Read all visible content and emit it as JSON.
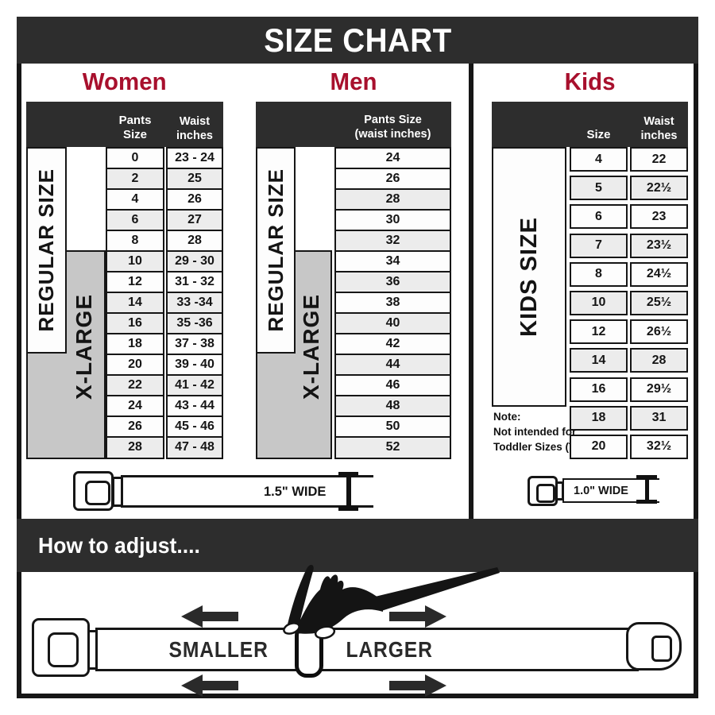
{
  "header": {
    "title": "SIZE CHART"
  },
  "colors": {
    "accent_red": "#a8102d",
    "dark_bar": "#2d2d2d",
    "shaded_row": "#ececec",
    "label_gray": "#c7c7c7",
    "border": "#161616"
  },
  "sections": {
    "women": {
      "title": "Women",
      "col1": "Pants Size",
      "col2": "Waist\ninches",
      "regular_label": "REGULAR SIZE",
      "xlarge_label": "X-LARGE",
      "rows": [
        {
          "size": "0",
          "waist": "23 - 24",
          "shaded": false
        },
        {
          "size": "2",
          "waist": "25",
          "shaded": true
        },
        {
          "size": "4",
          "waist": "26",
          "shaded": false
        },
        {
          "size": "6",
          "waist": "27",
          "shaded": true
        },
        {
          "size": "8",
          "waist": "28",
          "shaded": false
        },
        {
          "size": "10",
          "waist": "29 - 30",
          "shaded": true
        },
        {
          "size": "12",
          "waist": "31 - 32",
          "shaded": false
        },
        {
          "size": "14",
          "waist": "33 -34",
          "shaded": true
        },
        {
          "size": "16",
          "waist": "35 -36",
          "shaded": true
        },
        {
          "size": "18",
          "waist": "37 - 38",
          "shaded": false
        },
        {
          "size": "20",
          "waist": "39 - 40",
          "shaded": false
        },
        {
          "size": "22",
          "waist": "41 - 42",
          "shaded": true
        },
        {
          "size": "24",
          "waist": "43 - 44",
          "shaded": false
        },
        {
          "size": "26",
          "waist": "45 - 46",
          "shaded": false
        },
        {
          "size": "28",
          "waist": "47 - 48",
          "shaded": true
        }
      ]
    },
    "men": {
      "title": "Men",
      "col1": "Pants Size\n(waist inches)",
      "regular_label": "REGULAR SIZE",
      "xlarge_label": "X-LARGE",
      "rows": [
        {
          "size": "24",
          "shaded": false
        },
        {
          "size": "26",
          "shaded": false
        },
        {
          "size": "28",
          "shaded": true
        },
        {
          "size": "30",
          "shaded": false
        },
        {
          "size": "32",
          "shaded": true
        },
        {
          "size": "34",
          "shaded": false
        },
        {
          "size": "36",
          "shaded": true
        },
        {
          "size": "38",
          "shaded": false
        },
        {
          "size": "40",
          "shaded": true
        },
        {
          "size": "42",
          "shaded": false
        },
        {
          "size": "44",
          "shaded": true
        },
        {
          "size": "46",
          "shaded": false
        },
        {
          "size": "48",
          "shaded": true
        },
        {
          "size": "50",
          "shaded": false
        },
        {
          "size": "52",
          "shaded": true
        }
      ]
    },
    "kids": {
      "title": "Kids",
      "col1": "Size",
      "col2": "Waist\ninches",
      "label": "KIDS SIZE",
      "note": "Note:\nNot intended for\nToddler Sizes (T)",
      "rows": [
        {
          "size": "4",
          "waist": "22",
          "shaded": false
        },
        {
          "size": "5",
          "waist": "22½",
          "shaded": true
        },
        {
          "size": "6",
          "waist": "23",
          "shaded": false
        },
        {
          "size": "7",
          "waist": "23½",
          "shaded": true
        },
        {
          "size": "8",
          "waist": "24½",
          "shaded": false
        },
        {
          "size": "10",
          "waist": "25½",
          "shaded": true
        },
        {
          "size": "12",
          "waist": "26½",
          "shaded": false
        },
        {
          "size": "14",
          "waist": "28",
          "shaded": true
        },
        {
          "size": "16",
          "waist": "29½",
          "shaded": false
        },
        {
          "size": "18",
          "waist": "31",
          "shaded": true
        },
        {
          "size": "20",
          "waist": "32½",
          "shaded": false
        }
      ]
    }
  },
  "belts": {
    "adult_width_label": "1.5\" WIDE",
    "kids_width_label": "1.0\" WIDE"
  },
  "how_to": {
    "title": "How to adjust....",
    "smaller_label": "SMALLER",
    "larger_label": "LARGER"
  }
}
